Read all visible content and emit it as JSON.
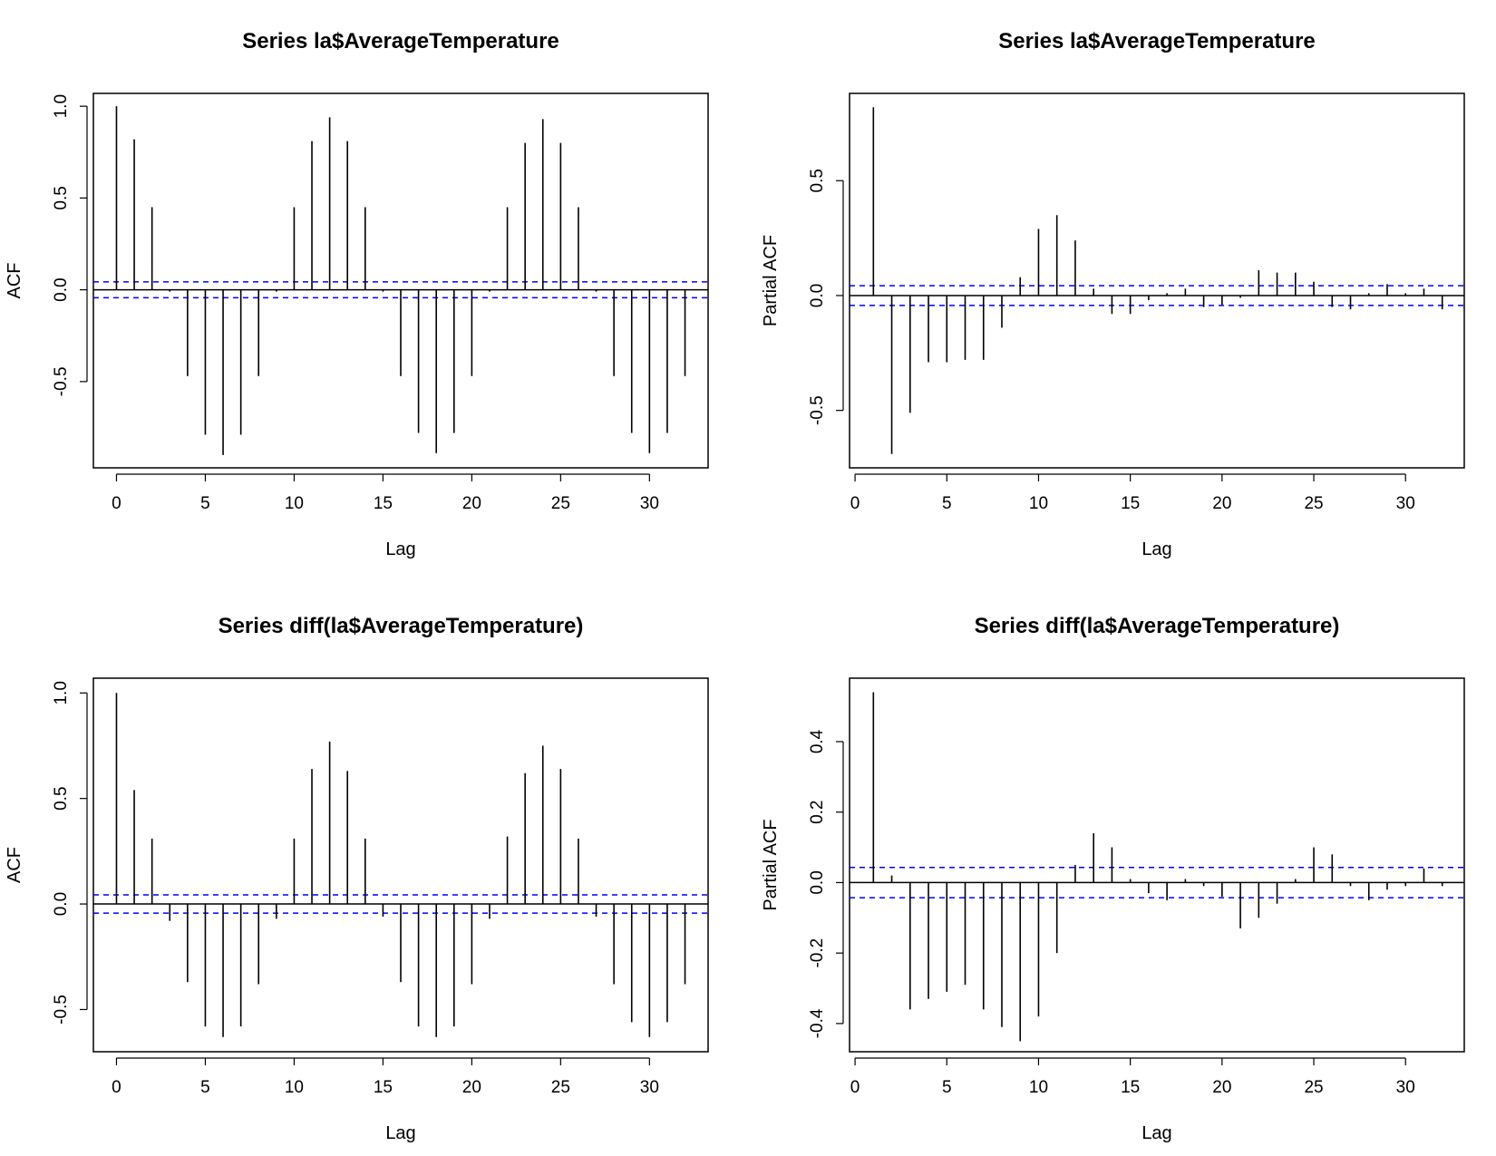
{
  "chart_data": [
    {
      "type": "bar",
      "subtype": "acf",
      "title": "Series  la$AverageTemperature",
      "xlabel": "Lag",
      "ylabel": "ACF",
      "xlim": [
        0,
        32
      ],
      "ylim": [
        -0.97,
        1.07
      ],
      "xticks": [
        0,
        5,
        10,
        15,
        20,
        25,
        30
      ],
      "yticks": [
        -0.5,
        0.0,
        0.5,
        1.0
      ],
      "ytick_labels": [
        "-0.5",
        "0.0",
        "0.5",
        "1.0"
      ],
      "confidence_bound": 0.043,
      "bound_color": "#0000ff",
      "lags": [
        0,
        1,
        2,
        3,
        4,
        5,
        6,
        7,
        8,
        9,
        10,
        11,
        12,
        13,
        14,
        15,
        16,
        17,
        18,
        19,
        20,
        21,
        22,
        23,
        24,
        25,
        26,
        27,
        28,
        29,
        30,
        31,
        32
      ],
      "values": [
        1.0,
        0.82,
        0.45,
        -0.01,
        -0.47,
        -0.79,
        -0.9,
        -0.79,
        -0.47,
        -0.01,
        0.45,
        0.81,
        0.94,
        0.81,
        0.45,
        -0.01,
        -0.47,
        -0.78,
        -0.89,
        -0.78,
        -0.47,
        -0.01,
        0.45,
        0.8,
        0.93,
        0.8,
        0.45,
        -0.01,
        -0.47,
        -0.78,
        -0.89,
        -0.78,
        -0.47
      ]
    },
    {
      "type": "bar",
      "subtype": "pacf",
      "title": "Series  la$AverageTemperature",
      "xlabel": "Lag",
      "ylabel": "Partial ACF",
      "xlim": [
        0,
        32
      ],
      "ylim": [
        -0.75,
        0.88
      ],
      "xticks": [
        0,
        5,
        10,
        15,
        20,
        25,
        30
      ],
      "yticks": [
        -0.5,
        0.0,
        0.5
      ],
      "ytick_labels": [
        "-0.5",
        "0.0",
        "0.5"
      ],
      "confidence_bound": 0.043,
      "bound_color": "#0000ff",
      "lags": [
        1,
        2,
        3,
        4,
        5,
        6,
        7,
        8,
        9,
        10,
        11,
        12,
        13,
        14,
        15,
        16,
        17,
        18,
        19,
        20,
        21,
        22,
        23,
        24,
        25,
        26,
        27,
        28,
        29,
        30,
        31,
        32
      ],
      "values": [
        0.82,
        -0.69,
        -0.51,
        -0.29,
        -0.29,
        -0.28,
        -0.28,
        -0.14,
        0.08,
        0.29,
        0.35,
        0.24,
        0.03,
        -0.08,
        -0.08,
        -0.02,
        0.01,
        0.03,
        -0.05,
        -0.04,
        -0.01,
        0.11,
        0.1,
        0.1,
        0.06,
        -0.05,
        -0.06,
        0.01,
        0.05,
        0.01,
        0.03,
        -0.06
      ]
    },
    {
      "type": "bar",
      "subtype": "acf",
      "title": "Series  diff(la$AverageTemperature)",
      "xlabel": "Lag",
      "ylabel": "ACF",
      "xlim": [
        0,
        32
      ],
      "ylim": [
        -0.7,
        1.07
      ],
      "xticks": [
        0,
        5,
        10,
        15,
        20,
        25,
        30
      ],
      "yticks": [
        -0.5,
        0.0,
        0.5,
        1.0
      ],
      "ytick_labels": [
        "-0.5",
        "0.0",
        "0.5",
        "1.0"
      ],
      "confidence_bound": 0.043,
      "bound_color": "#0000ff",
      "lags": [
        0,
        1,
        2,
        3,
        4,
        5,
        6,
        7,
        8,
        9,
        10,
        11,
        12,
        13,
        14,
        15,
        16,
        17,
        18,
        19,
        20,
        21,
        22,
        23,
        24,
        25,
        26,
        27,
        28,
        29,
        30,
        31,
        32
      ],
      "values": [
        1.0,
        0.54,
        0.31,
        -0.08,
        -0.37,
        -0.58,
        -0.63,
        -0.58,
        -0.38,
        -0.07,
        0.31,
        0.64,
        0.77,
        0.63,
        0.31,
        -0.06,
        -0.37,
        -0.58,
        -0.63,
        -0.58,
        -0.38,
        -0.07,
        0.32,
        0.62,
        0.75,
        0.64,
        0.31,
        -0.06,
        -0.38,
        -0.56,
        -0.63,
        -0.56,
        -0.38
      ]
    },
    {
      "type": "bar",
      "subtype": "pacf",
      "title": "Series  diff(la$AverageTemperature)",
      "xlabel": "Lag",
      "ylabel": "Partial ACF",
      "xlim": [
        0,
        32
      ],
      "ylim": [
        -0.48,
        0.58
      ],
      "xticks": [
        0,
        5,
        10,
        15,
        20,
        25,
        30
      ],
      "yticks": [
        -0.4,
        -0.2,
        0.0,
        0.2,
        0.4
      ],
      "ytick_labels": [
        "-0.4",
        "-0.2",
        "0.0",
        "0.2",
        "0.4"
      ],
      "confidence_bound": 0.043,
      "bound_color": "#0000ff",
      "lags": [
        1,
        2,
        3,
        4,
        5,
        6,
        7,
        8,
        9,
        10,
        11,
        12,
        13,
        14,
        15,
        16,
        17,
        18,
        19,
        20,
        21,
        22,
        23,
        24,
        25,
        26,
        27,
        28,
        29,
        30,
        31,
        32
      ],
      "values": [
        0.54,
        0.02,
        -0.36,
        -0.33,
        -0.31,
        -0.29,
        -0.36,
        -0.41,
        -0.45,
        -0.38,
        -0.2,
        0.05,
        0.14,
        0.1,
        0.01,
        -0.03,
        -0.05,
        0.01,
        -0.01,
        -0.04,
        -0.13,
        -0.1,
        -0.06,
        0.01,
        0.1,
        0.08,
        -0.01,
        -0.05,
        -0.02,
        -0.01,
        0.04,
        -0.01
      ]
    }
  ]
}
